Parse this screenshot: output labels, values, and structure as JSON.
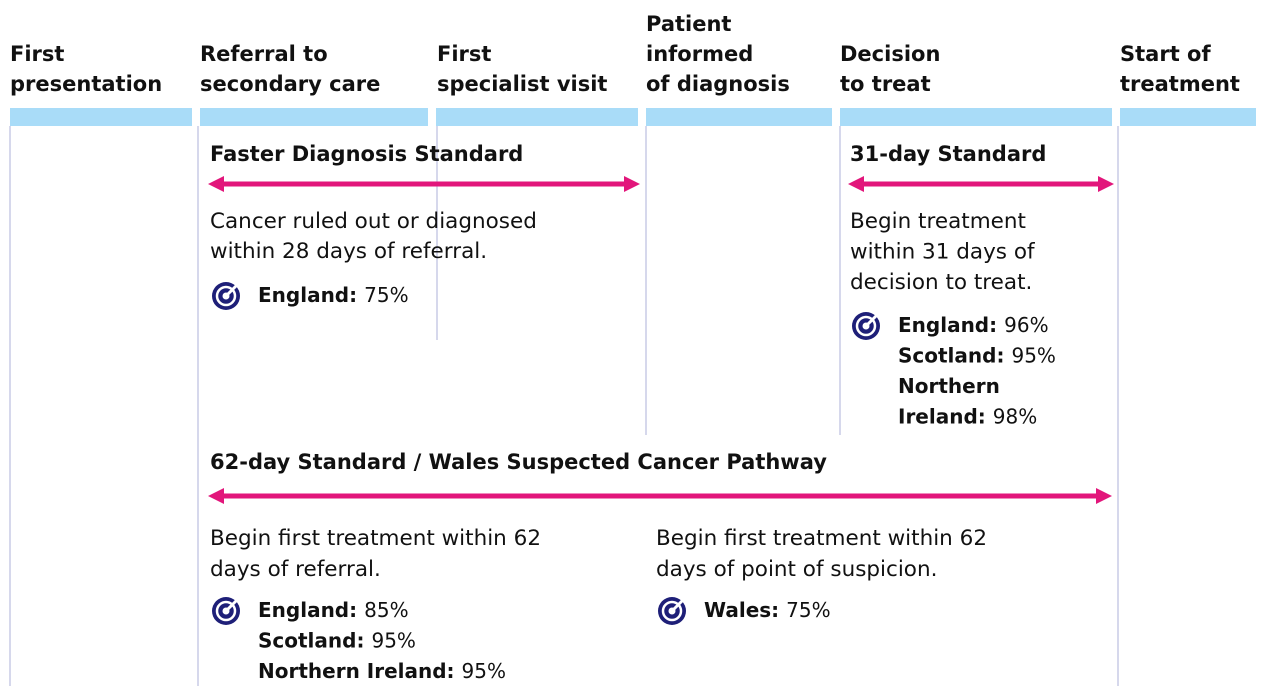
{
  "columns": [
    {
      "lines": [
        "First",
        "presentation"
      ]
    },
    {
      "lines": [
        "Referral to",
        "secondary care"
      ]
    },
    {
      "lines": [
        "First",
        "specialist visit"
      ]
    },
    {
      "lines": [
        "Patient",
        "informed",
        "of diagnosis"
      ]
    },
    {
      "lines": [
        "Decision",
        "to treat"
      ]
    },
    {
      "lines": [
        "Start of",
        "treatment"
      ]
    }
  ],
  "standards": [
    {
      "title": "Faster Diagnosis Standard",
      "description": [
        "Cancer ruled out or diagnosed",
        "within 28 days of referral."
      ],
      "targets": [
        {
          "region": [
            "England:"
          ],
          "value": "75%"
        }
      ]
    },
    {
      "title": "31-day Standard",
      "description": [
        "Begin treatment",
        "within 31 days of",
        "decision to treat."
      ],
      "targets": [
        {
          "region": [
            "England:"
          ],
          "value": "96%"
        },
        {
          "region": [
            "Scotland:"
          ],
          "value": "95%"
        },
        {
          "region": [
            "Northern",
            "Ireland:"
          ],
          "value": "98%"
        }
      ]
    },
    {
      "title": "62-day Standard / Wales Suspected Cancer Pathway",
      "pathways": [
        {
          "description": [
            "Begin first treatment within 62",
            "days of referral."
          ],
          "targets": [
            {
              "region": [
                "England:"
              ],
              "value": "85%"
            },
            {
              "region": [
                "Scotland:"
              ],
              "value": "95%"
            },
            {
              "region": [
                "Northern Ireland:"
              ],
              "value": "95%"
            }
          ]
        },
        {
          "description": [
            "Begin first treatment within 62",
            "days of point of suspicion."
          ],
          "targets": [
            {
              "region": [
                "Wales:"
              ],
              "value": "75%"
            }
          ]
        }
      ]
    }
  ]
}
